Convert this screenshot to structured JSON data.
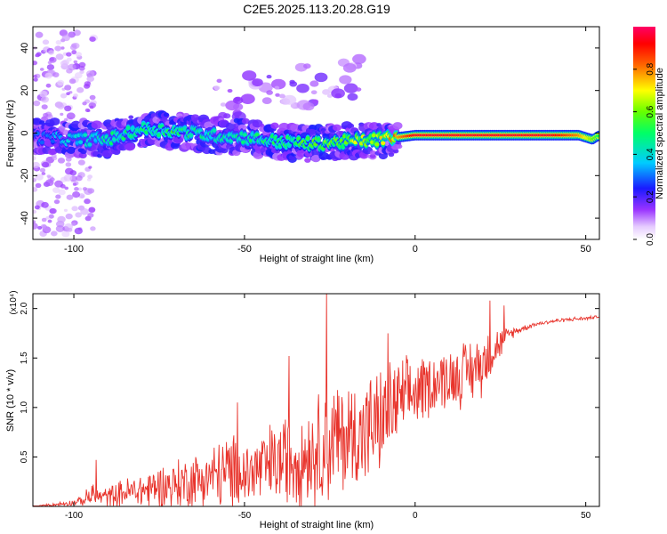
{
  "title": "C2E5.2025.113.20.28.G19",
  "colors": {
    "snr_line": "#e8332b",
    "frame": "#000000"
  },
  "chart_data": [
    {
      "type": "heatmap",
      "title": "C2E5.2025.113.20.28.G19",
      "xlabel": "Height of straight line (km)",
      "ylabel": "Frequency (Hz)",
      "xlim": [
        -112,
        54
      ],
      "ylim": [
        -50,
        50
      ],
      "x_ticks": [
        -100,
        -50,
        0,
        50
      ],
      "y_ticks": [
        -40,
        -20,
        0,
        20,
        40
      ],
      "colorbar": {
        "label": "Normalized spectral amplitude",
        "range": [
          0,
          1
        ],
        "ticks": [
          "0.0",
          "0.2",
          "0.4",
          "0.6",
          "0.8"
        ],
        "ticks_values": [
          0.0,
          0.2,
          0.4,
          0.6,
          0.8
        ],
        "colormap": "rainbow (white-violet-blue-cyan-green-yellow-red-magenta)"
      },
      "ridge": {
        "description_points_x_km": [
          -112,
          -100,
          -90,
          -80,
          -70,
          -60,
          -50,
          -40,
          -30,
          -20,
          -10,
          0,
          10,
          20,
          30,
          40,
          48,
          52,
          54
        ],
        "frequency_hz": [
          -2,
          -3,
          -3,
          2,
          1,
          -1,
          -2,
          -4,
          -5,
          -4,
          -3,
          -1,
          -1,
          -1,
          -1,
          -1,
          -1,
          -3,
          -1
        ],
        "peak_amplitude": [
          0.25,
          0.35,
          0.4,
          0.45,
          0.45,
          0.4,
          0.4,
          0.45,
          0.5,
          0.55,
          0.6,
          0.95,
          0.95,
          0.95,
          0.95,
          0.95,
          0.8,
          0.6,
          0.5
        ]
      }
    },
    {
      "type": "line",
      "xlabel": "Height of straight line (km)",
      "ylabel": "SNR (10 * v/v)",
      "y_multiplier_label": "(x10⁴)",
      "xlim": [
        -112,
        54
      ],
      "ylim": [
        0,
        2.15
      ],
      "x_ticks": [
        -100,
        -50,
        0,
        50
      ],
      "y_ticks": [
        0.5,
        1.0,
        1.5,
        2.0
      ],
      "y_tick_labels": [
        "0.5",
        "1.0",
        "1.5",
        "2.0"
      ],
      "series": [
        {
          "name": "",
          "envelope_x_km": [
            -112,
            -105,
            -100,
            -97,
            -95,
            -93,
            -90,
            -85,
            -80,
            -75,
            -70,
            -65,
            -60,
            -55,
            -52,
            -50,
            -45,
            -40,
            -35,
            -30,
            -28,
            -25,
            -24,
            -20,
            -15,
            -10,
            -8,
            -5,
            -2,
            0,
            5,
            10,
            15,
            20,
            22,
            25,
            28,
            30,
            35,
            40,
            45,
            50,
            54
          ],
          "envelope_mean": [
            0.0,
            0.02,
            0.04,
            0.06,
            0.12,
            0.1,
            0.1,
            0.14,
            0.16,
            0.2,
            0.22,
            0.26,
            0.3,
            0.34,
            0.34,
            0.32,
            0.38,
            0.45,
            0.5,
            0.55,
            0.6,
            0.62,
            0.65,
            0.7,
            0.75,
            0.85,
            0.95,
            1.05,
            1.1,
            1.15,
            1.25,
            1.3,
            1.35,
            1.45,
            1.55,
            1.65,
            1.75,
            1.78,
            1.84,
            1.87,
            1.89,
            1.9,
            1.92
          ],
          "envelope_amplitude": [
            0.0,
            0.02,
            0.03,
            0.05,
            0.15,
            0.08,
            0.1,
            0.14,
            0.18,
            0.22,
            0.25,
            0.28,
            0.3,
            0.38,
            0.35,
            0.33,
            0.38,
            0.42,
            0.48,
            0.5,
            0.55,
            0.58,
            0.6,
            0.55,
            0.55,
            0.5,
            0.5,
            0.42,
            0.38,
            0.35,
            0.3,
            0.3,
            0.32,
            0.3,
            0.25,
            0.15,
            0.06,
            0.04,
            0.02,
            0.02,
            0.02,
            0.02,
            0.01
          ],
          "spikes": [
            {
              "x": -93.5,
              "y": 0.47
            },
            {
              "x": -52,
              "y": 1.05
            },
            {
              "x": -37,
              "y": 1.52
            },
            {
              "x": -26,
              "y": 2.15
            },
            {
              "x": -8,
              "y": 1.75
            },
            {
              "x": 22,
              "y": 2.08
            },
            {
              "x": 26,
              "y": 2.03
            }
          ]
        }
      ]
    }
  ]
}
